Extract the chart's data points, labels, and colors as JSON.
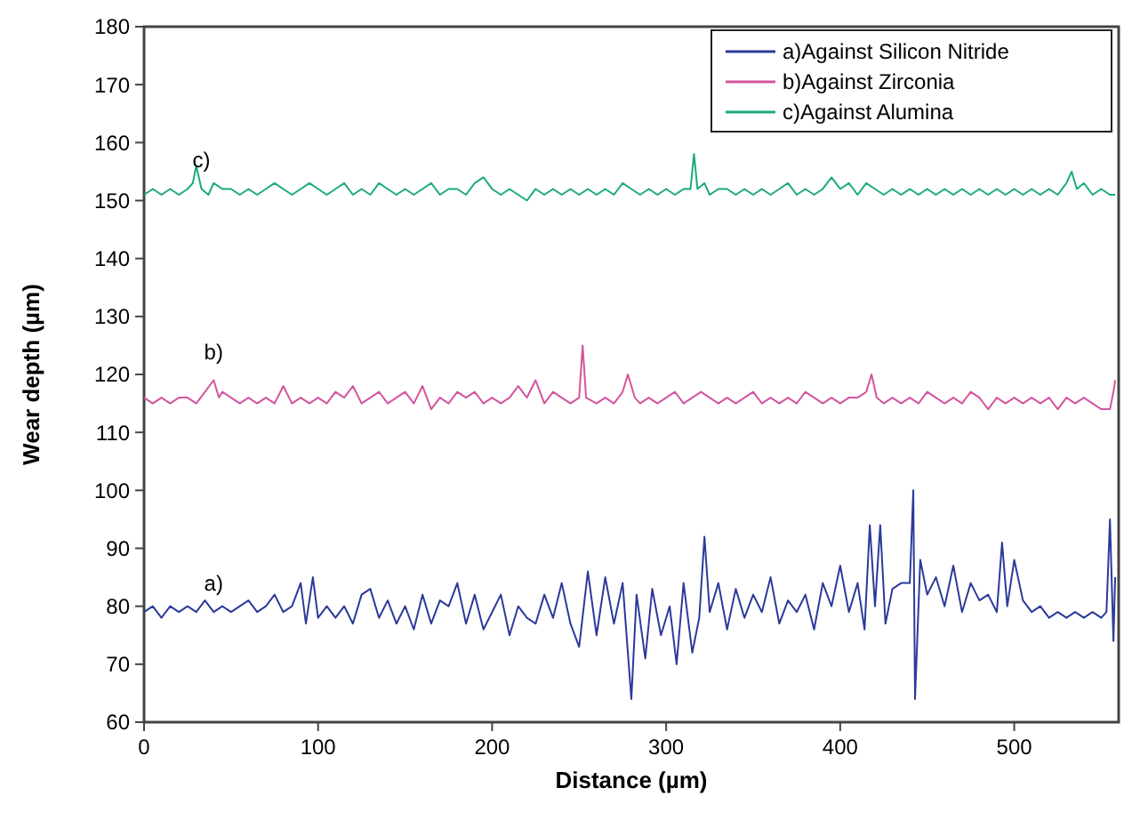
{
  "chart_data": {
    "type": "line",
    "xlabel": "Distance (µm)",
    "ylabel": "Wear depth (µm)",
    "xlim": [
      0,
      560
    ],
    "xticks": [
      0,
      100,
      200,
      300,
      400,
      500
    ],
    "ylim": [
      60,
      180
    ],
    "yticks": [
      60,
      70,
      80,
      90,
      100,
      110,
      120,
      130,
      140,
      150,
      160,
      170,
      180
    ],
    "grid": false,
    "legend": "top right",
    "marker": "none",
    "line_style": "solid",
    "annotations": [
      "a)",
      "b)",
      "c)"
    ],
    "series": [
      {
        "name": "a)Against Silicon Nitride",
        "color": "#2b3a9a",
        "x": [
          0,
          5,
          10,
          15,
          20,
          25,
          30,
          35,
          40,
          45,
          50,
          55,
          60,
          65,
          70,
          75,
          80,
          85,
          90,
          93,
          97,
          100,
          105,
          110,
          115,
          120,
          125,
          130,
          135,
          140,
          145,
          150,
          155,
          160,
          165,
          170,
          175,
          180,
          185,
          190,
          195,
          200,
          205,
          210,
          215,
          220,
          225,
          230,
          235,
          240,
          245,
          250,
          255,
          260,
          265,
          270,
          275,
          280,
          283,
          288,
          292,
          297,
          302,
          306,
          310,
          315,
          319,
          322,
          325,
          330,
          335,
          340,
          345,
          350,
          355,
          360,
          365,
          370,
          375,
          380,
          385,
          390,
          395,
          400,
          405,
          410,
          414,
          417,
          420,
          423,
          426,
          430,
          435,
          440,
          442,
          443,
          446,
          450,
          455,
          460,
          465,
          470,
          475,
          480,
          485,
          490,
          493,
          496,
          500,
          505,
          510,
          515,
          520,
          525,
          530,
          535,
          540,
          545,
          550,
          553,
          555,
          557,
          558
        ],
        "values": [
          79,
          80,
          78,
          80,
          79,
          80,
          79,
          81,
          79,
          80,
          79,
          80,
          81,
          79,
          80,
          82,
          79,
          80,
          84,
          77,
          85,
          78,
          80,
          78,
          80,
          77,
          82,
          83,
          78,
          81,
          77,
          80,
          76,
          82,
          77,
          81,
          80,
          84,
          77,
          82,
          76,
          79,
          82,
          75,
          80,
          78,
          77,
          82,
          78,
          84,
          77,
          73,
          86,
          75,
          85,
          77,
          84,
          64,
          82,
          71,
          83,
          75,
          80,
          70,
          84,
          72,
          78,
          92,
          79,
          84,
          76,
          83,
          78,
          82,
          79,
          85,
          77,
          81,
          79,
          82,
          76,
          84,
          80,
          87,
          79,
          84,
          76,
          94,
          80,
          94,
          77,
          83,
          84,
          84,
          100,
          64,
          88,
          82,
          85,
          80,
          87,
          79,
          84,
          81,
          82,
          79,
          91,
          80,
          88,
          81,
          79,
          80,
          78,
          79,
          78,
          79,
          78,
          79,
          78,
          79,
          95,
          74,
          85
        ]
      },
      {
        "name": "b)Against Zirconia",
        "color": "#d3559e",
        "x": [
          0,
          5,
          10,
          15,
          20,
          25,
          30,
          35,
          40,
          43,
          45,
          50,
          55,
          60,
          65,
          70,
          75,
          80,
          85,
          90,
          95,
          100,
          105,
          110,
          115,
          120,
          125,
          130,
          135,
          140,
          145,
          150,
          155,
          160,
          165,
          170,
          175,
          180,
          185,
          190,
          195,
          200,
          205,
          210,
          215,
          220,
          225,
          230,
          235,
          240,
          245,
          250,
          252,
          254,
          260,
          265,
          270,
          275,
          278,
          282,
          285,
          290,
          295,
          300,
          305,
          310,
          315,
          320,
          325,
          330,
          335,
          340,
          345,
          350,
          355,
          360,
          365,
          370,
          375,
          380,
          385,
          390,
          395,
          400,
          405,
          410,
          415,
          418,
          421,
          425,
          430,
          435,
          440,
          445,
          450,
          455,
          460,
          465,
          470,
          475,
          480,
          485,
          490,
          495,
          500,
          505,
          510,
          515,
          520,
          525,
          530,
          535,
          540,
          545,
          550,
          555,
          557,
          558
        ],
        "values": [
          116,
          115,
          116,
          115,
          116,
          116,
          115,
          117,
          119,
          116,
          117,
          116,
          115,
          116,
          115,
          116,
          115,
          118,
          115,
          116,
          115,
          116,
          115,
          117,
          116,
          118,
          115,
          116,
          117,
          115,
          116,
          117,
          115,
          118,
          114,
          116,
          115,
          117,
          116,
          117,
          115,
          116,
          115,
          116,
          118,
          116,
          119,
          115,
          117,
          116,
          115,
          116,
          125,
          116,
          115,
          116,
          115,
          117,
          120,
          116,
          115,
          116,
          115,
          116,
          117,
          115,
          116,
          117,
          116,
          115,
          116,
          115,
          116,
          117,
          115,
          116,
          115,
          116,
          115,
          117,
          116,
          115,
          116,
          115,
          116,
          116,
          117,
          120,
          116,
          115,
          116,
          115,
          116,
          115,
          117,
          116,
          115,
          116,
          115,
          117,
          116,
          114,
          116,
          115,
          116,
          115,
          116,
          115,
          116,
          114,
          116,
          115,
          116,
          115,
          114,
          114,
          117,
          119
        ]
      },
      {
        "name": "c)Against Alumina",
        "color": "#1aab7a",
        "x": [
          0,
          5,
          10,
          15,
          20,
          25,
          28,
          30,
          33,
          37,
          40,
          45,
          50,
          55,
          60,
          65,
          70,
          75,
          80,
          85,
          90,
          95,
          100,
          105,
          110,
          115,
          120,
          125,
          130,
          135,
          140,
          145,
          150,
          155,
          160,
          165,
          170,
          175,
          180,
          185,
          190,
          195,
          200,
          205,
          210,
          215,
          220,
          225,
          230,
          235,
          240,
          245,
          250,
          255,
          260,
          265,
          270,
          275,
          280,
          285,
          290,
          295,
          300,
          305,
          310,
          314,
          316,
          318,
          322,
          325,
          330,
          335,
          340,
          345,
          350,
          355,
          360,
          365,
          370,
          375,
          380,
          385,
          390,
          395,
          400,
          405,
          410,
          415,
          420,
          425,
          430,
          435,
          440,
          445,
          450,
          455,
          460,
          465,
          470,
          475,
          480,
          485,
          490,
          495,
          500,
          505,
          510,
          515,
          520,
          525,
          530,
          533,
          536,
          540,
          545,
          550,
          555,
          558
        ],
        "values": [
          151,
          152,
          151,
          152,
          151,
          152,
          153,
          156,
          152,
          151,
          153,
          152,
          152,
          151,
          152,
          151,
          152,
          153,
          152,
          151,
          152,
          153,
          152,
          151,
          152,
          153,
          151,
          152,
          151,
          153,
          152,
          151,
          152,
          151,
          152,
          153,
          151,
          152,
          152,
          151,
          153,
          154,
          152,
          151,
          152,
          151,
          150,
          152,
          151,
          152,
          151,
          152,
          151,
          152,
          151,
          152,
          151,
          153,
          152,
          151,
          152,
          151,
          152,
          151,
          152,
          152,
          158,
          152,
          153,
          151,
          152,
          152,
          151,
          152,
          151,
          152,
          151,
          152,
          153,
          151,
          152,
          151,
          152,
          154,
          152,
          153,
          151,
          153,
          152,
          151,
          152,
          151,
          152,
          151,
          152,
          151,
          152,
          151,
          152,
          151,
          152,
          151,
          152,
          151,
          152,
          151,
          152,
          151,
          152,
          151,
          153,
          155,
          152,
          153,
          151,
          152,
          151,
          151
        ]
      }
    ]
  }
}
